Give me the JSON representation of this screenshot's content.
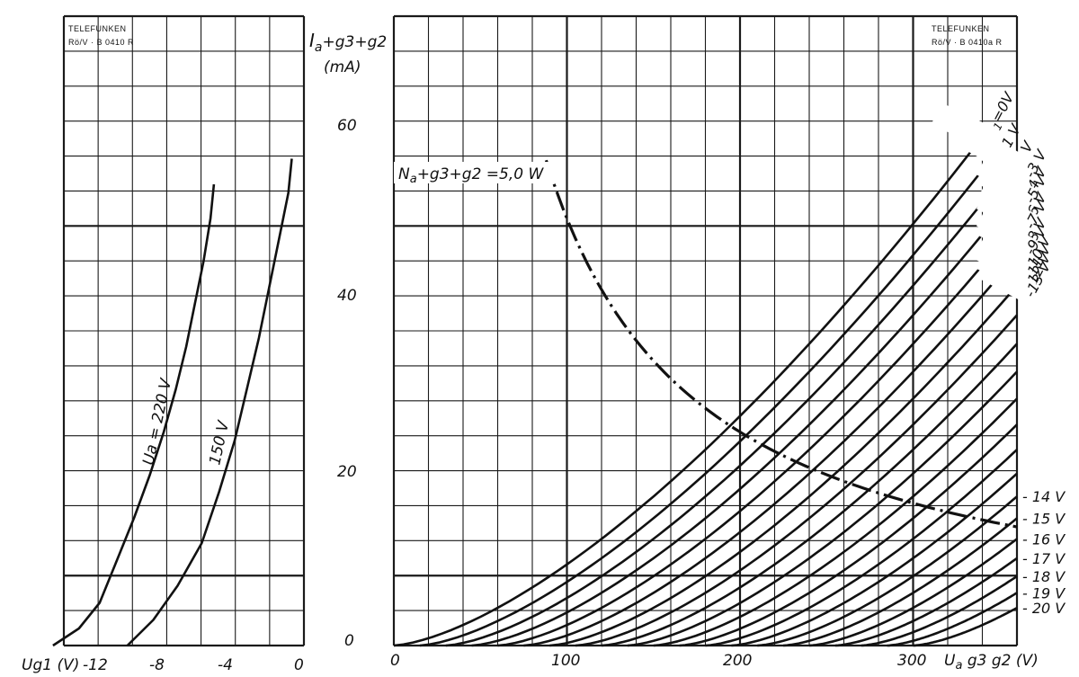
{
  "stamps": {
    "left_maker": "TELEFUNKEN",
    "left_ref": "Rö/V · B 0410 R",
    "right_maker": "TELEFUNKEN",
    "right_ref": "Rö/V · B 0410a R"
  },
  "colors": {
    "ink": "#111111",
    "grid": "#1a1a1a",
    "background": "#ffffff"
  },
  "chart_data": [
    {
      "type": "line",
      "title": "",
      "xlabel": "Ug1 (V)",
      "ylabel": "Ia+g3+g2 (mA)",
      "xlim": [
        -14,
        0
      ],
      "ylim": [
        0,
        70
      ],
      "x_ticks": [
        "-12",
        "-8",
        "-4",
        "0"
      ],
      "y_ticks": [
        "0",
        "20",
        "40",
        "60"
      ],
      "grid": true,
      "series": [
        {
          "name": "Ua = 220 V",
          "points": [
            [
              -14.5,
              0
            ],
            [
              -13,
              2
            ],
            [
              -11.8,
              5
            ],
            [
              -10.8,
              10
            ],
            [
              -9.8,
              15
            ],
            [
              -8.9,
              20
            ],
            [
              -8.1,
              25
            ],
            [
              -7.4,
              30
            ],
            [
              -6.8,
              35
            ],
            [
              -6.3,
              40
            ],
            [
              -5.8,
              45
            ],
            [
              -5.4,
              50
            ],
            [
              -5.2,
              54
            ]
          ]
        },
        {
          "name": "150 V",
          "points": [
            [
              -10.2,
              0
            ],
            [
              -8.7,
              3
            ],
            [
              -7.3,
              7
            ],
            [
              -5.9,
              12
            ],
            [
              -4.9,
              18
            ],
            [
              -4.0,
              24
            ],
            [
              -3.3,
              30
            ],
            [
              -2.6,
              36
            ],
            [
              -2.0,
              42
            ],
            [
              -1.4,
              48
            ],
            [
              -0.9,
              53
            ],
            [
              -0.7,
              57
            ]
          ]
        }
      ]
    },
    {
      "type": "line",
      "title": "",
      "xlabel": "Ua g3 g2 (V)",
      "ylabel": "Ia+g3+g2 (mA)",
      "y_label_parts": [
        "I",
        "a",
        "+g3+g2",
        "(mA)"
      ],
      "x_label_parts": [
        "U",
        "a",
        " g3 g2 (V)"
      ],
      "xlim": [
        0,
        360
      ],
      "ylim": [
        0,
        70
      ],
      "x_ticks": [
        "0",
        "100",
        "200",
        "300"
      ],
      "grid": true,
      "curve_family": {
        "parameter": "Ug1",
        "curve_shape": "Ia = k·(Ua − U0)^1.5, k = 0.0095",
        "series": [
          {
            "name": "Ug1=0V",
            "label": "Ug1=0V",
            "label_parts": [
              "U",
              "g1",
              "=0V"
            ],
            "u0": 0,
            "end_ia": 58
          },
          {
            "name": "-1 V",
            "label": "-1 V",
            "u0": 15,
            "end_ia": 57
          },
          {
            "name": "-2 V",
            "label": "-2 V",
            "u0": 30,
            "end_ia": 55
          },
          {
            "name": "-3 V",
            "label": "-3 V",
            "u0": 45,
            "end_ia": 54
          },
          {
            "name": "-4 V",
            "label": "-4 V",
            "u0": 60,
            "end_ia": 52
          },
          {
            "name": "-5 V",
            "label": "-5 V",
            "u0": 75,
            "end_ia": 51
          },
          {
            "name": "-6 V",
            "label": "-6 V",
            "u0": 90,
            "end_ia": 49
          },
          {
            "name": "-7 V",
            "label": "-7 V",
            "u0": 105,
            "end_ia": 48
          },
          {
            "name": "-8 V",
            "label": "-8 V",
            "u0": 120,
            "end_ia": 46
          },
          {
            "name": "-9 V",
            "label": "-9 V",
            "u0": 135,
            "end_ia": 45
          },
          {
            "name": "-10 V",
            "label": "-10 V",
            "u0": 150,
            "end_ia": 43
          },
          {
            "name": "-11 V",
            "label": "-11 V",
            "u0": 165,
            "end_ia": 42
          },
          {
            "name": "-12 V",
            "label": "-12 V",
            "u0": 180,
            "end_ia": 41
          },
          {
            "name": "-13 V",
            "label": "-13 V",
            "u0": 195,
            "end_ia": 40
          },
          {
            "name": "- 14 V",
            "label": "- 14 V",
            "u0": 210
          },
          {
            "name": "- 15 V",
            "label": "- 15 V",
            "u0": 225
          },
          {
            "name": "- 16 V",
            "label": "- 16 V",
            "u0": 240
          },
          {
            "name": "- 17 V",
            "label": "- 17 V",
            "u0": 255
          },
          {
            "name": "- 18 V",
            "label": "- 18 V",
            "u0": 270
          },
          {
            "name": "- 19 V",
            "label": "- 19 V",
            "u0": 285
          },
          {
            "name": "- 20 V",
            "label": "- 20 V",
            "u0": 300
          }
        ]
      },
      "power_limit": {
        "label": "Na+g3+g2 =5,0 W",
        "label_parts": [
          "N",
          "a",
          "+g3+g2 =5,0 W"
        ],
        "watts": 5.0,
        "ua_range": [
          88,
          360
        ]
      }
    }
  ]
}
